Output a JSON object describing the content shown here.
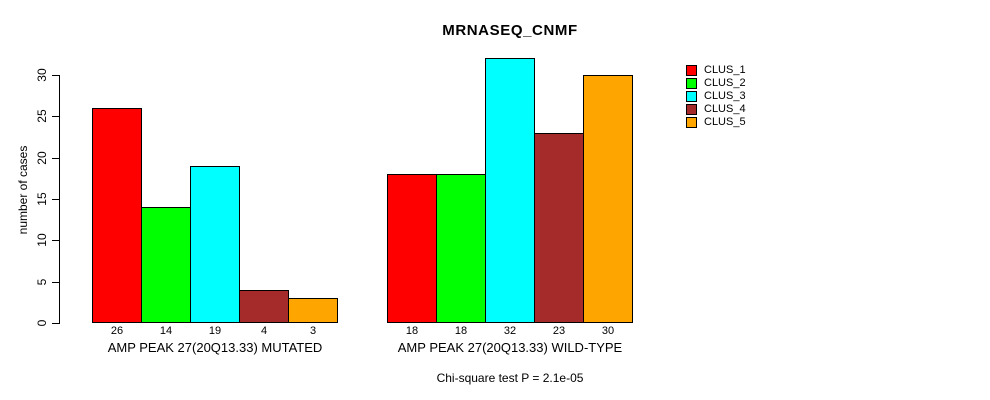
{
  "chart_data": {
    "type": "bar",
    "title": "MRNASEQ_CNMF",
    "ylabel": "number of cases",
    "xlabel": "",
    "yticks": [
      0,
      5,
      10,
      15,
      20,
      25,
      30
    ],
    "ylim": [
      0,
      32
    ],
    "grid": false,
    "legend_position": "top-right",
    "show_bar_values": true,
    "axis_color": "#000000",
    "bar_border_color": "#000000",
    "series": [
      {
        "name": "CLUS_1",
        "color": "#FF0000"
      },
      {
        "name": "CLUS_2",
        "color": "#00FF00"
      },
      {
        "name": "CLUS_3",
        "color": "#00FFFF"
      },
      {
        "name": "CLUS_4",
        "color": "#A52A2A"
      },
      {
        "name": "CLUS_5",
        "color": "#FFA500"
      }
    ],
    "groups": [
      {
        "label": "AMP PEAK 27(20Q13.33) MUTATED",
        "values": [
          26,
          14,
          19,
          4,
          3
        ]
      },
      {
        "label": "AMP PEAK 27(20Q13.33) WILD-TYPE",
        "values": [
          18,
          18,
          32,
          23,
          30
        ]
      }
    ],
    "annotation": "Chi-square test P = 2.1e-05"
  }
}
